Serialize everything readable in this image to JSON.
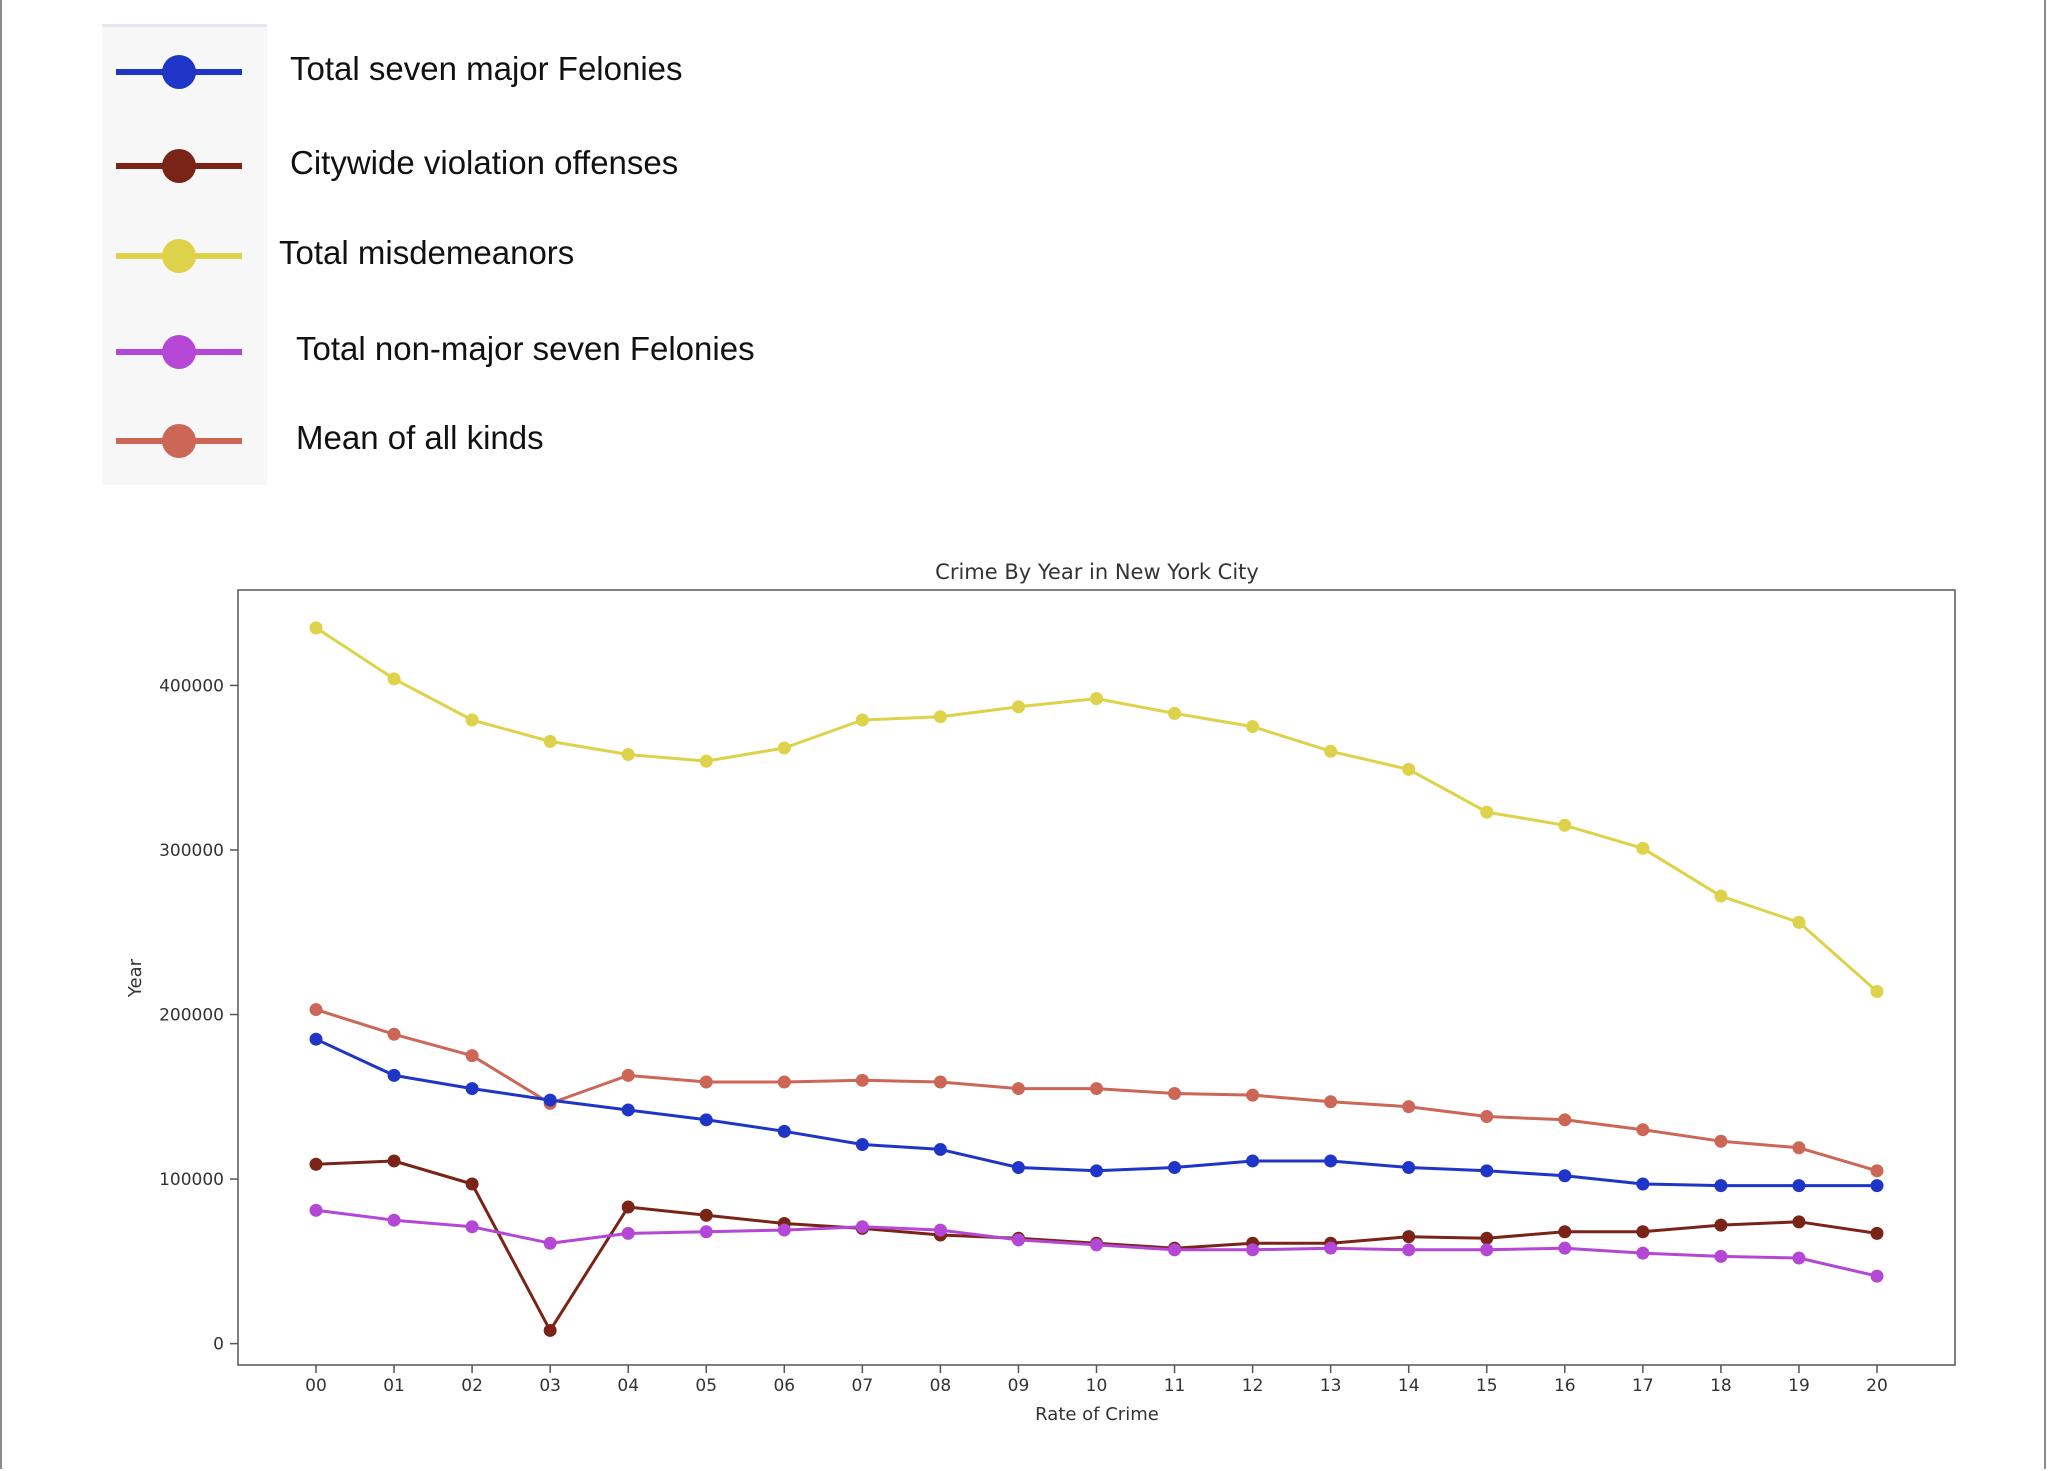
{
  "legend": {
    "items": [
      {
        "label": "Total seven major Felonies",
        "color": "#1f35c8",
        "icon": "blue-line-marker-icon"
      },
      {
        "label": "Citywide violation offenses",
        "color": "#7a2418",
        "icon": "maroon-line-marker-icon"
      },
      {
        "label": "Total misdemeanors",
        "color": "#ddd24a",
        "icon": "yellow-line-marker-icon"
      },
      {
        "label": "Total non-major seven Felonies",
        "color": "#b547d6",
        "icon": "purple-line-marker-icon"
      },
      {
        "label": "Mean of all kinds",
        "color": "#cc6656",
        "icon": "salmon-line-marker-icon"
      }
    ]
  },
  "chart_data": {
    "type": "line",
    "title": "Crime By Year in New York City",
    "xlabel": "Rate of Crime",
    "ylabel": "Year",
    "categories": [
      "00",
      "01",
      "02",
      "03",
      "04",
      "05",
      "06",
      "07",
      "08",
      "09",
      "10",
      "11",
      "12",
      "13",
      "14",
      "15",
      "16",
      "17",
      "18",
      "19",
      "20"
    ],
    "yticks": [
      0,
      100000,
      200000,
      300000,
      400000
    ],
    "ytick_labels": [
      "0",
      "100000",
      "200000",
      "300000",
      "400000"
    ],
    "ylim": [
      -13000,
      458000
    ],
    "grid": false,
    "legend": "external-top-left",
    "series": [
      {
        "name": "Total misdemeanors",
        "color": "#ddd24a",
        "values": [
          435000,
          404000,
          379000,
          366000,
          358000,
          354000,
          362000,
          379000,
          381000,
          387000,
          392000,
          383000,
          375000,
          360000,
          349000,
          323000,
          315000,
          301000,
          272000,
          256000,
          214000
        ]
      },
      {
        "name": "Mean of all kinds",
        "color": "#cc6656",
        "values": [
          203000,
          188000,
          175000,
          146000,
          163000,
          159000,
          159000,
          160000,
          159000,
          155000,
          155000,
          152000,
          151000,
          147000,
          144000,
          138000,
          136000,
          130000,
          123000,
          119000,
          105000
        ]
      },
      {
        "name": "Total seven major Felonies",
        "color": "#1f35c8",
        "values": [
          185000,
          163000,
          155000,
          148000,
          142000,
          136000,
          129000,
          121000,
          118000,
          107000,
          105000,
          107000,
          111000,
          111000,
          107000,
          105000,
          102000,
          97000,
          96000,
          96000,
          96000
        ]
      },
      {
        "name": "Citywide violation offenses",
        "color": "#7a2418",
        "values": [
          109000,
          111000,
          97000,
          8000,
          83000,
          78000,
          73000,
          70000,
          66000,
          64000,
          61000,
          58000,
          61000,
          61000,
          65000,
          64000,
          68000,
          68000,
          72000,
          74000,
          67000
        ]
      },
      {
        "name": "Total non-major seven Felonies",
        "color": "#b547d6",
        "values": [
          81000,
          75000,
          71000,
          61000,
          67000,
          68000,
          69000,
          71000,
          69000,
          63000,
          60000,
          57000,
          57000,
          58000,
          57000,
          57000,
          58000,
          55000,
          53000,
          52000,
          41000
        ]
      }
    ]
  }
}
